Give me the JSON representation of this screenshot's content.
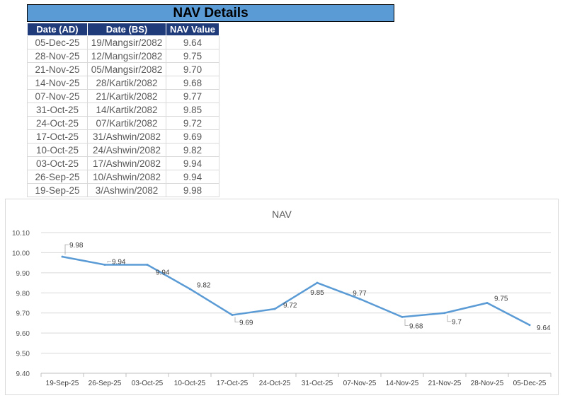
{
  "header": {
    "title": "NAV Details"
  },
  "table": {
    "headers": [
      "Date (AD)",
      "Date (BS)",
      "NAV Value"
    ],
    "rows": [
      [
        "05-Dec-25",
        "19/Mangsir/2082",
        "9.64"
      ],
      [
        "28-Nov-25",
        "12/Mangsir/2082",
        "9.75"
      ],
      [
        "21-Nov-25",
        "05/Mangsir/2082",
        "9.70"
      ],
      [
        "14-Nov-25",
        "28/Kartik/2082",
        "9.68"
      ],
      [
        "07-Nov-25",
        "21/Kartik/2082",
        "9.77"
      ],
      [
        "31-Oct-25",
        "14/Kartik/2082",
        "9.85"
      ],
      [
        "24-Oct-25",
        "07/Kartik/2082",
        "9.72"
      ],
      [
        "17-Oct-25",
        "31/Ashwin/2082",
        "9.69"
      ],
      [
        "10-Oct-25",
        "24/Ashwin/2082",
        "9.82"
      ],
      [
        "03-Oct-25",
        "17/Ashwin/2082",
        "9.94"
      ],
      [
        "26-Sep-25",
        "10/Ashwin/2082",
        "9.94"
      ],
      [
        "19-Sep-25",
        "3/Ashwin/2082",
        "9.98"
      ]
    ]
  },
  "chart_data": {
    "type": "line",
    "title": "NAV",
    "categories": [
      "19-Sep-25",
      "26-Sep-25",
      "03-Oct-25",
      "10-Oct-25",
      "17-Oct-25",
      "24-Oct-25",
      "31-Oct-25",
      "07-Nov-25",
      "14-Nov-25",
      "21-Nov-25",
      "28-Nov-25",
      "05-Dec-25"
    ],
    "values": [
      9.98,
      9.94,
      9.94,
      9.82,
      9.69,
      9.72,
      9.85,
      9.77,
      9.68,
      9.7,
      9.75,
      9.64
    ],
    "data_labels": [
      "9.98",
      "9.94",
      "9.94",
      "9.82",
      "9.69",
      "9.72",
      "9.85",
      "9.77",
      "9.68",
      "9.7",
      "9.75",
      "9.64"
    ],
    "y_ticks": [
      "10.10",
      "10.00",
      "9.90",
      "9.80",
      "9.70",
      "9.60",
      "9.50",
      "9.40"
    ],
    "ylim": [
      9.4,
      10.1
    ],
    "grid": true,
    "line_color": "#5b9bd5"
  }
}
